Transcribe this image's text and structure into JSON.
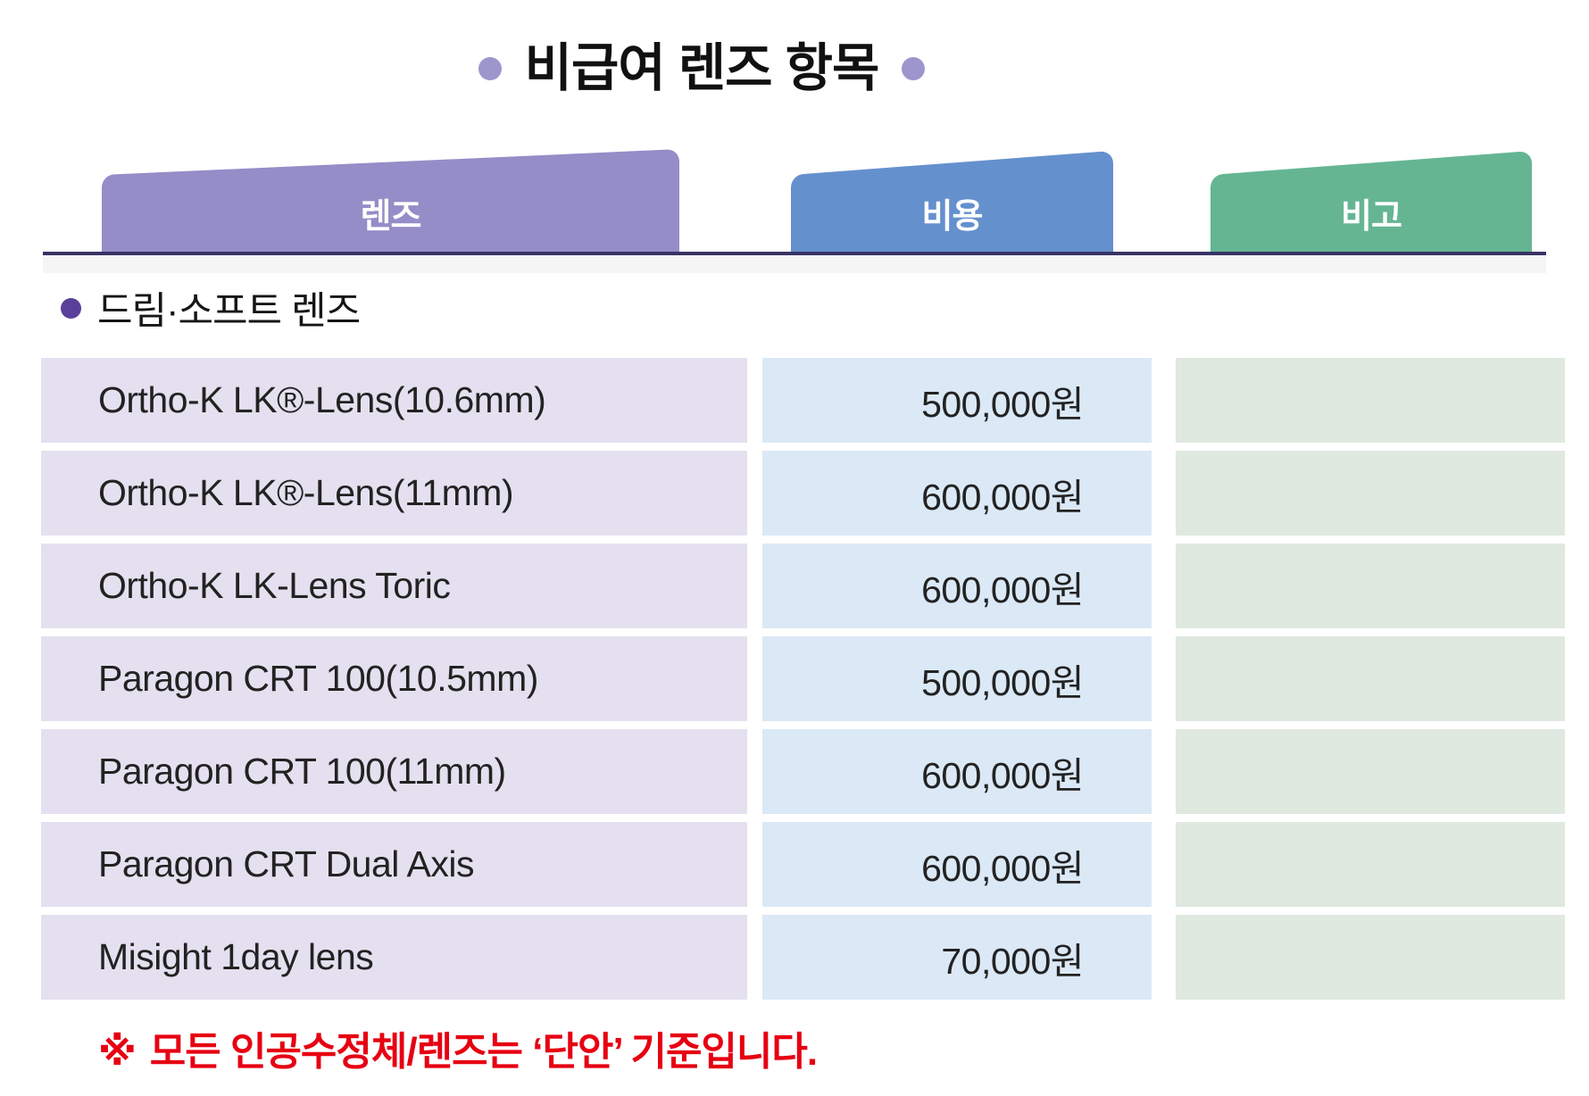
{
  "title": {
    "text": "비급여 렌즈 항목"
  },
  "columns": [
    {
      "key": "lens",
      "label": "렌즈"
    },
    {
      "key": "cost",
      "label": "비용"
    },
    {
      "key": "note",
      "label": "비고"
    }
  ],
  "section": {
    "label": "드림·소프트 렌즈"
  },
  "rows": [
    {
      "lens": "Ortho-K LK®-Lens(10.6mm)",
      "cost": "500,000원",
      "note": ""
    },
    {
      "lens": "Ortho-K LK®-Lens(11mm)",
      "cost": "600,000원",
      "note": ""
    },
    {
      "lens": "Ortho-K LK-Lens Toric",
      "cost": "600,000원",
      "note": ""
    },
    {
      "lens": "Paragon CRT 100(10.5mm)",
      "cost": "500,000원",
      "note": ""
    },
    {
      "lens": "Paragon CRT 100(11mm)",
      "cost": "600,000원",
      "note": ""
    },
    {
      "lens": "Paragon CRT Dual Axis",
      "cost": "600,000원",
      "note": ""
    },
    {
      "lens": "Misight 1day lens",
      "cost": "70,000원",
      "note": ""
    }
  ],
  "footnote": {
    "marker": "※",
    "text": "모든 인공수정체/렌즈는 ‘단안’ 기준입니다."
  },
  "colors": {
    "tab_lens": "#948dc7",
    "tab_cost": "#6590ce",
    "tab_note": "#65b593",
    "cell_lens": "#e4e0ef",
    "cell_cost": "#dbe8f6",
    "cell_note": "#dfe9df",
    "divider": "#373465",
    "title_bullet": "#9c96cd",
    "section_bullet": "#5a4099",
    "footnote_red": "#e60012"
  }
}
